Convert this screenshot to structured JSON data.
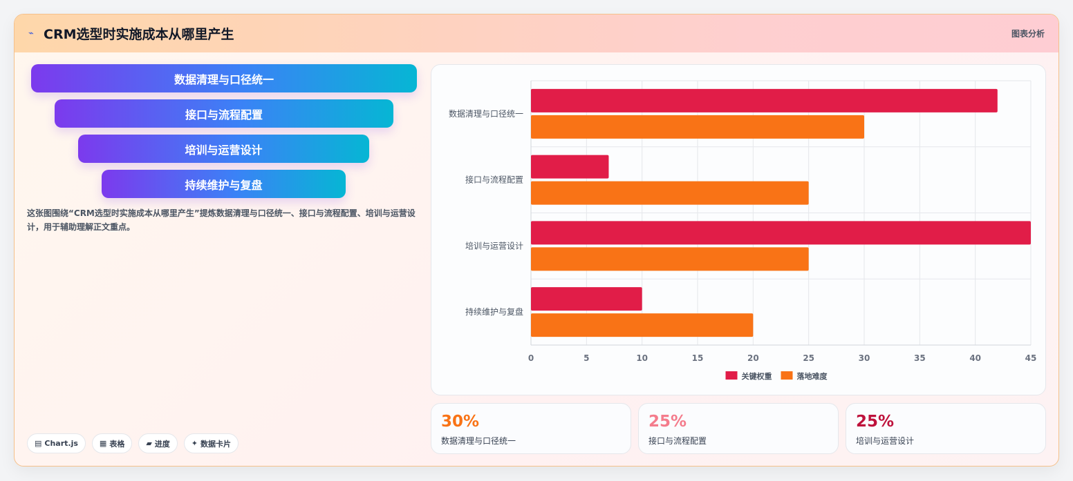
{
  "header": {
    "title": "CRM选型时实施成本从哪里产生",
    "tag": "图表分析",
    "logo_icon": "spark-icon"
  },
  "funnel": [
    {
      "label": "数据清理与口径统一"
    },
    {
      "label": "接口与流程配置"
    },
    {
      "label": "培训与运营设计"
    },
    {
      "label": "持续维护与复盘"
    }
  ],
  "description": "这张图围绕“CRM选型时实施成本从哪里产生”提炼数据清理与口径统一、接口与流程配置、培训与运营设计，用于辅助理解正文重点。",
  "chips": [
    {
      "icon": "chart-icon",
      "glyph": "▤",
      "label": "Chart.js"
    },
    {
      "icon": "table-icon",
      "glyph": "▦",
      "label": "表格"
    },
    {
      "icon": "progress-icon",
      "glyph": "▰",
      "label": "进度"
    },
    {
      "icon": "sparkle-icon",
      "glyph": "✦",
      "label": "数据卡片"
    }
  ],
  "chart_data": {
    "type": "bar",
    "orientation": "horizontal",
    "categories": [
      "数据清理与口径统一",
      "接口与流程配置",
      "培训与运营设计",
      "持续维护与复盘"
    ],
    "series": [
      {
        "name": "关键权重",
        "values": [
          42,
          7,
          45,
          10
        ],
        "color": "#e11d48"
      },
      {
        "name": "落地难度",
        "values": [
          30,
          25,
          25,
          20
        ],
        "color": "#f97316"
      }
    ],
    "xlim": [
      0,
      45
    ],
    "xticks": [
      0,
      5,
      10,
      15,
      20,
      25,
      30,
      35,
      40,
      45
    ],
    "grid": true,
    "legend": "bottom"
  },
  "stats": [
    {
      "value": "30%",
      "label": "数据清理与口径统一",
      "color": "#f97316"
    },
    {
      "value": "25%",
      "label": "接口与流程配置",
      "color": "#f47c8c"
    },
    {
      "value": "25%",
      "label": "培训与运营设计",
      "color": "#be123c"
    }
  ]
}
